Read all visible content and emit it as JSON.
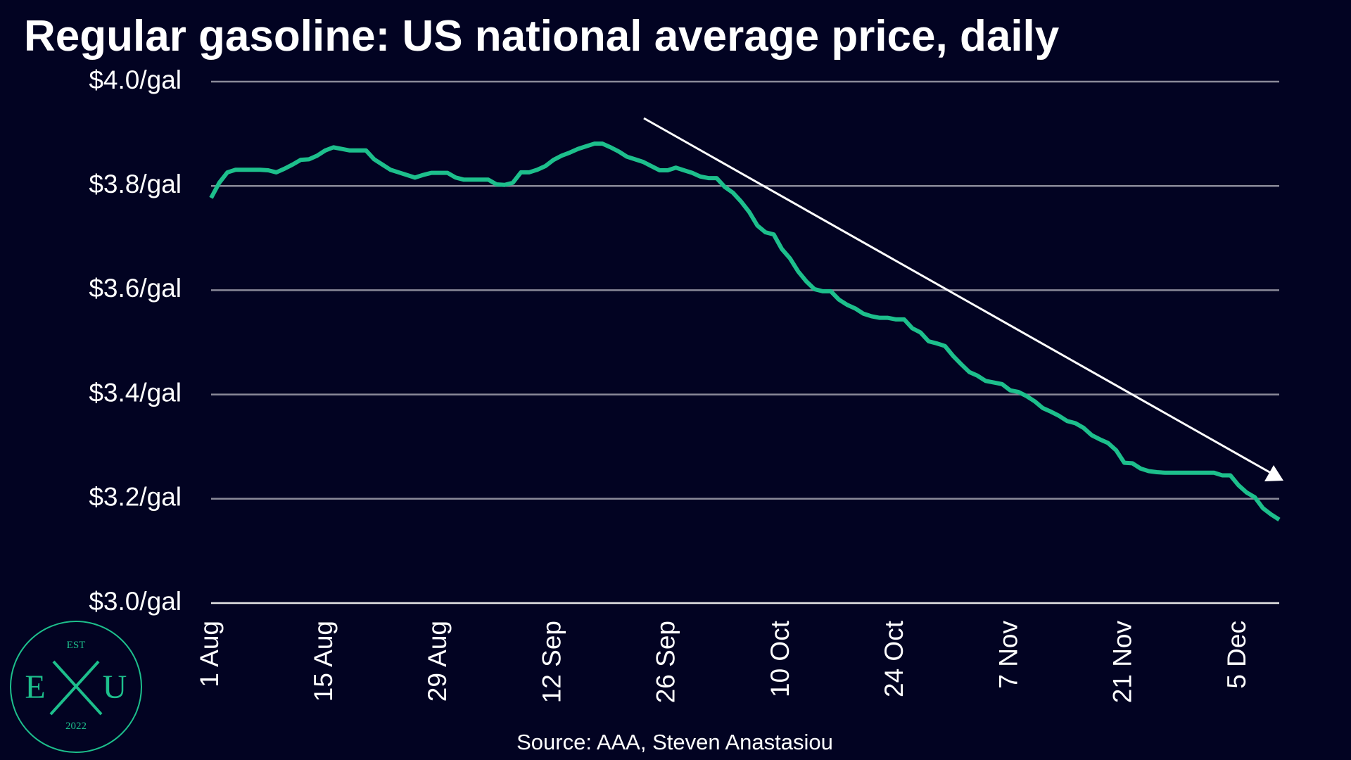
{
  "chart_data": {
    "type": "line",
    "title": "Regular gasoline: US national average price, daily",
    "source": "Source: AAA, Steven Anastasiou",
    "categories": [
      "1 Aug",
      null,
      null,
      null,
      null,
      null,
      null,
      null,
      null,
      null,
      null,
      null,
      null,
      null,
      "15 Aug",
      null,
      null,
      null,
      null,
      null,
      null,
      null,
      null,
      null,
      null,
      null,
      null,
      null,
      "29 Aug",
      null,
      null,
      null,
      null,
      null,
      null,
      null,
      null,
      null,
      null,
      null,
      null,
      null,
      "12 Sep",
      null,
      null,
      null,
      null,
      null,
      null,
      null,
      null,
      null,
      null,
      null,
      null,
      null,
      "26 Sep",
      null,
      null,
      null,
      null,
      null,
      null,
      null,
      null,
      null,
      null,
      null,
      null,
      null,
      "10 Oct",
      null,
      null,
      null,
      null,
      null,
      null,
      null,
      null,
      null,
      null,
      null,
      null,
      null,
      "24 Oct",
      null,
      null,
      null,
      null,
      null,
      null,
      null,
      null,
      null,
      null,
      null,
      null,
      null,
      "7 Nov",
      null,
      null,
      null,
      null,
      null,
      null,
      null,
      null,
      null,
      null,
      null,
      null,
      null,
      "21 Nov",
      null,
      null,
      null,
      null,
      null,
      null,
      null,
      null,
      null,
      null,
      null,
      null,
      null,
      "5 Dec",
      null,
      null,
      null,
      null,
      null
    ],
    "series": [
      {
        "name": "Regular gasoline",
        "color": "#1dbf8c",
        "values": [
          3.777,
          3.806,
          3.826,
          3.831,
          3.831,
          3.831,
          3.831,
          3.83,
          3.826,
          3.833,
          3.841,
          3.85,
          3.851,
          3.858,
          3.868,
          3.874,
          3.871,
          3.868,
          3.868,
          3.868,
          3.851,
          3.841,
          3.831,
          3.826,
          3.821,
          3.816,
          3.821,
          3.825,
          3.825,
          3.825,
          3.816,
          3.812,
          3.812,
          3.812,
          3.812,
          3.803,
          3.802,
          3.806,
          3.826,
          3.826,
          3.831,
          3.838,
          3.85,
          3.858,
          3.864,
          3.871,
          3.876,
          3.881,
          3.881,
          3.874,
          3.866,
          3.856,
          3.851,
          3.846,
          3.838,
          3.83,
          3.83,
          3.835,
          3.83,
          3.825,
          3.818,
          3.815,
          3.815,
          3.798,
          3.787,
          3.77,
          3.75,
          3.724,
          3.711,
          3.707,
          3.679,
          3.661,
          3.636,
          3.617,
          3.602,
          3.598,
          3.598,
          3.582,
          3.572,
          3.565,
          3.555,
          3.55,
          3.547,
          3.547,
          3.544,
          3.544,
          3.527,
          3.519,
          3.502,
          3.498,
          3.493,
          3.474,
          3.458,
          3.443,
          3.436,
          3.426,
          3.423,
          3.42,
          3.408,
          3.405,
          3.397,
          3.387,
          3.374,
          3.367,
          3.359,
          3.349,
          3.345,
          3.336,
          3.322,
          3.314,
          3.307,
          3.293,
          3.269,
          3.268,
          3.258,
          3.253,
          3.251,
          3.25,
          3.25,
          3.25,
          3.25,
          3.25,
          3.25,
          3.25,
          3.245,
          3.245,
          3.226,
          3.212,
          3.203,
          3.182,
          3.17,
          3.16
        ]
      }
    ],
    "ylim": [
      3.0,
      4.0
    ],
    "yticks": [
      {
        "value": 3.0,
        "label": "$3.0/gal"
      },
      {
        "value": 3.2,
        "label": "$3.2/gal"
      },
      {
        "value": 3.4,
        "label": "$3.4/gal"
      },
      {
        "value": 3.6,
        "label": "$3.6/gal"
      },
      {
        "value": 3.8,
        "label": "$3.8/gal"
      },
      {
        "value": 4.0,
        "label": "$4.0/gal"
      }
    ],
    "grid": true
  },
  "logo": {
    "top": "EST",
    "left": "E",
    "right": "U",
    "bottom": "2022"
  }
}
